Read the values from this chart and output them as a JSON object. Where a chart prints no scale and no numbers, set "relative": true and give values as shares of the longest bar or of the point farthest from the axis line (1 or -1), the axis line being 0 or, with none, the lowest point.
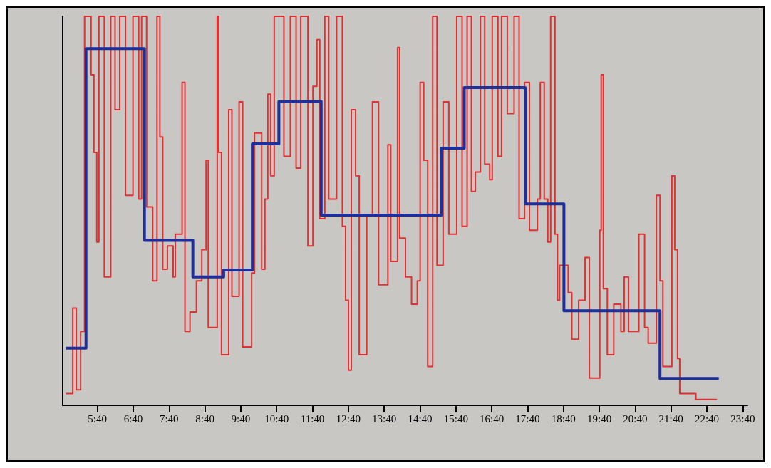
{
  "chart_data": {
    "type": "step",
    "relative": true,
    "xlim": [
      4.7,
      23.8
    ],
    "xticks": [
      {
        "value": 5.667,
        "label": "5:40"
      },
      {
        "value": 6.667,
        "label": "6:40"
      },
      {
        "value": 7.667,
        "label": "7:40"
      },
      {
        "value": 8.667,
        "label": "8:40"
      },
      {
        "value": 9.667,
        "label": "9:40"
      },
      {
        "value": 10.667,
        "label": "10:40"
      },
      {
        "value": 11.667,
        "label": "11:40"
      },
      {
        "value": 12.667,
        "label": "12:40"
      },
      {
        "value": 13.667,
        "label": "13:40"
      },
      {
        "value": 14.667,
        "label": "14:40"
      },
      {
        "value": 15.667,
        "label": "15:40"
      },
      {
        "value": 16.667,
        "label": "16:40"
      },
      {
        "value": 17.667,
        "label": "17:40"
      },
      {
        "value": 18.667,
        "label": "18:40"
      },
      {
        "value": 19.667,
        "label": "19:40"
      },
      {
        "value": 20.667,
        "label": "20:40"
      },
      {
        "value": 21.667,
        "label": "21:40"
      },
      {
        "value": 22.667,
        "label": "22:40"
      },
      {
        "value": 23.667,
        "label": "23:40"
      }
    ],
    "grid": false,
    "marker": "none",
    "line_style": "solid",
    "series": [
      {
        "color": "#e03030",
        "x": [
          4.79,
          4.98,
          5.08,
          5.2,
          5.31,
          5.49,
          5.57,
          5.65,
          5.71,
          5.86,
          6.04,
          6.16,
          6.29,
          6.45,
          6.66,
          6.82,
          6.9,
          7.04,
          7.21,
          7.33,
          7.41,
          7.49,
          7.62,
          7.78,
          7.84,
          8.03,
          8.11,
          8.25,
          8.43,
          8.58,
          8.7,
          8.76,
          9.01,
          9.05,
          9.13,
          9.33,
          9.42,
          9.62,
          9.72,
          9.97,
          10.05,
          10.25,
          10.34,
          10.42,
          10.5,
          10.6,
          10.87,
          10.95,
          11.05,
          11.21,
          11.34,
          11.54,
          11.68,
          11.79,
          11.87,
          12.01,
          12.12,
          12.34,
          12.5,
          12.59,
          12.67,
          12.75,
          12.87,
          12.97,
          13.18,
          13.34,
          13.51,
          13.77,
          13.85,
          14.04,
          14.1,
          14.26,
          14.43,
          14.59,
          14.67,
          14.77,
          14.88,
          15.02,
          15.14,
          15.31,
          15.47,
          15.69,
          15.84,
          15.98,
          16.1,
          16.21,
          16.35,
          16.47,
          16.61,
          16.68,
          16.84,
          16.94,
          17.1,
          17.17,
          17.29,
          17.43,
          17.58,
          17.72,
          17.94,
          18.02,
          18.13,
          18.23,
          18.31,
          18.43,
          18.5,
          18.56,
          18.8,
          18.9,
          19.09,
          19.27,
          19.39,
          19.68,
          19.72,
          19.78,
          19.89,
          20.07,
          20.27,
          20.36,
          20.48,
          20.77,
          20.93,
          21.03,
          21.26,
          21.36,
          21.44,
          21.69,
          21.77,
          21.85,
          21.91,
          22.36,
          22.95
        ],
        "values": [
          0.03,
          0.25,
          0.04,
          0.19,
          1,
          0.85,
          0.65,
          0.42,
          1,
          0.33,
          1,
          0.76,
          1,
          0.54,
          1,
          0.53,
          1,
          0.51,
          0.32,
          1,
          0.69,
          0.35,
          0.41,
          0.33,
          0.44,
          0.83,
          0.19,
          0.24,
          0.32,
          0.4,
          0.63,
          0.2,
          1,
          0.65,
          0.13,
          0.76,
          0.28,
          0.78,
          0.15,
          0.34,
          0.7,
          0.35,
          0.53,
          0.8,
          0.59,
          1,
          0.64,
          0.64,
          1,
          0.61,
          1,
          0.41,
          0.82,
          0.94,
          0.48,
          1,
          0.53,
          1,
          0.46,
          0.27,
          0.09,
          0.76,
          0.59,
          0.13,
          0.49,
          0.78,
          0.31,
          0.67,
          0.37,
          0.92,
          0.43,
          0.33,
          0.26,
          0.32,
          0.83,
          0.63,
          0.1,
          1,
          0.36,
          0.78,
          0.44,
          1,
          0.46,
          1,
          0.55,
          0.6,
          1,
          0.62,
          0.58,
          1,
          0.64,
          1,
          0.75,
          0.75,
          1,
          0.48,
          0.83,
          0.45,
          0.53,
          0.83,
          0.53,
          0.42,
          1,
          0.44,
          0.27,
          0.36,
          0.29,
          0.17,
          0.27,
          0.38,
          0.07,
          0.45,
          0.85,
          0.3,
          0.13,
          0.26,
          0.19,
          0.33,
          0.19,
          0.44,
          0.2,
          0.16,
          0.54,
          0.32,
          0.1,
          0.59,
          0.4,
          0.12,
          0.03,
          0.015,
          0.015
        ]
      },
      {
        "color": "#1f2f9a",
        "x": [
          4.79,
          5.35,
          6.98,
          8.33,
          9.19,
          9.99,
          10.73,
          11.91,
          15.26,
          15.9,
          17.6,
          18.68,
          21.36,
          23.0
        ],
        "values": [
          0.147,
          0.917,
          0.424,
          0.33,
          0.348,
          0.672,
          0.781,
          0.489,
          0.661,
          0.817,
          0.518,
          0.243,
          0.069,
          0.069
        ]
      }
    ]
  }
}
